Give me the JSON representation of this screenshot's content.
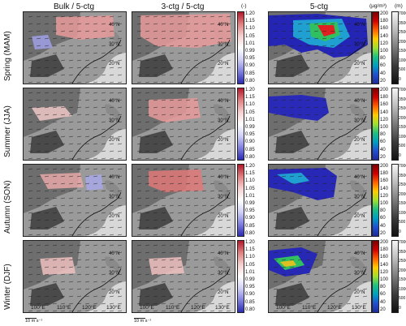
{
  "columns": [
    "Bulk / 5-ctg",
    "3-ctg / 5-ctg",
    "5-ctg"
  ],
  "units": {
    "ratio": "(-)",
    "conc": "(µg/m³)",
    "elev": "(m)"
  },
  "rows": [
    "Spring (MAM)",
    "Summer (JJA)",
    "Autumn (SON)",
    "Winter (DJF)"
  ],
  "ratio_ticks": [
    "1.20",
    "1.15",
    "1.10",
    "1.05",
    "1.01",
    "0.99",
    "0.95",
    "0.90",
    "0.85",
    "0.80"
  ],
  "conc_ticks": [
    "200",
    "180",
    "160",
    "140",
    "120",
    "100",
    "80",
    "60",
    "40",
    "20"
  ],
  "elev_ticks": [
    "7000",
    "3500",
    "2500",
    "2000",
    "1500",
    "1000",
    "500",
    "0"
  ],
  "lat_labels": [
    "40°N",
    "30°N",
    "20°N"
  ],
  "lon_labels": [
    "100°E",
    "110°E",
    "120°E",
    "130°E"
  ],
  "scale_label": "10 m s⁻¹",
  "colors": {
    "red": "#d04040",
    "blue": "#4040c0",
    "terrain": "#cfcfcf"
  }
}
